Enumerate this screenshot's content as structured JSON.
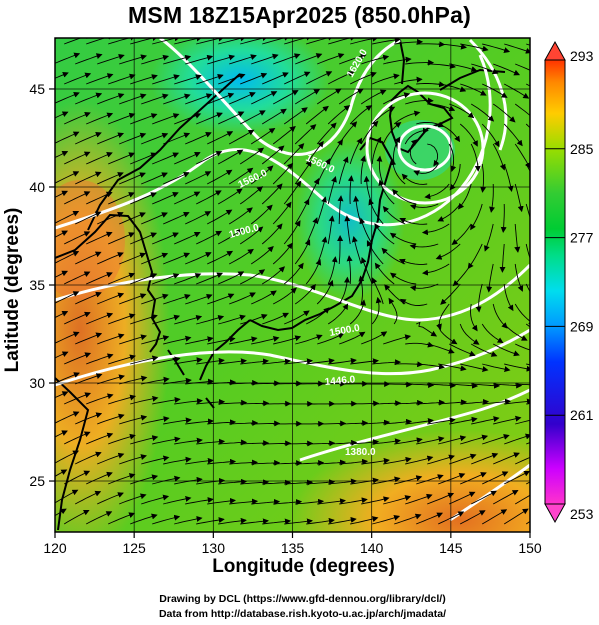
{
  "title": "MSM 18Z15Apr2025 (850.0hPa)",
  "axes": {
    "xlabel": "Longitude (degrees)",
    "ylabel": "Latitude  (degrees)",
    "x_ticks": [
      "120",
      "125",
      "130",
      "135",
      "140",
      "145",
      "150"
    ],
    "y_ticks": [
      "25",
      "30",
      "35",
      "40",
      "45"
    ],
    "x_range": [
      120,
      150
    ],
    "y_range": [
      22.4,
      47.6
    ]
  },
  "colorbar": {
    "ticks": [
      "293",
      "285",
      "277",
      "269",
      "261",
      "253"
    ],
    "range": [
      253,
      293
    ],
    "colors": [
      "#ff33cc",
      "#cc00ff",
      "#3300cc",
      "#0033ff",
      "#0099ff",
      "#00ddee",
      "#00dd88",
      "#00cc33",
      "#33cc33",
      "#99dd00",
      "#ffcc00",
      "#ff8800",
      "#ff3300"
    ]
  },
  "contour_labels": [
    "1620.0",
    "1560.0",
    "1500.0",
    "1446.0",
    "1380.0",
    "1260.0"
  ],
  "credits": {
    "line1": "Drawing by DCL (https://www.gfd-dennou.org/library/dcl/)",
    "line2": "Data from http://database.rish.kyoto-u.ac.jp/arch/jmadata/"
  }
}
